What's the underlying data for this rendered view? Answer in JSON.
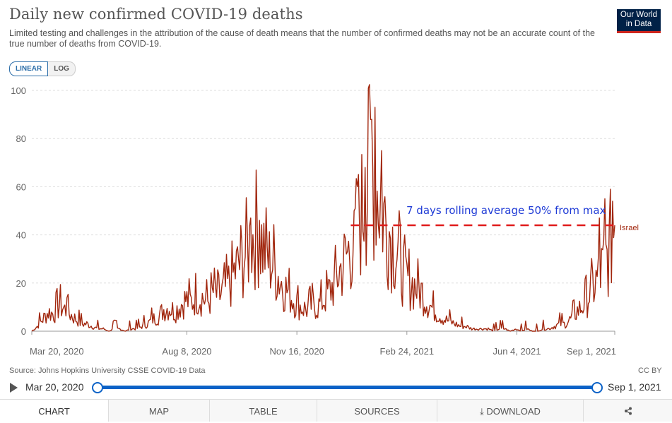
{
  "header": {
    "title": "Daily new confirmed COVID-19 deaths",
    "subtitle": "Limited testing and challenges in the attribution of the cause of death means that the number of confirmed deaths may not be an accurate count of the true number of deaths from COVID-19.",
    "logo_line1": "Our World",
    "logo_line2": "in Data"
  },
  "scale": {
    "linear_label": "LINEAR",
    "log_label": "LOG",
    "active": "linear"
  },
  "colors": {
    "series": "#a1260d",
    "annotation_line": "#e01b1b",
    "annotation_text": "#1f3bd6",
    "accent": "#0b62c7",
    "logo_bg": "#002147",
    "logo_bar": "#ce261e"
  },
  "chart_data": {
    "type": "line",
    "ylim": [
      0,
      100
    ],
    "y_ticks": [
      0,
      20,
      40,
      60,
      80,
      100
    ],
    "x_ticks": [
      "Mar 20, 2020",
      "Aug 8, 2020",
      "Nov 16, 2020",
      "Feb 24, 2021",
      "Jun 4, 2021",
      "Sep 1, 2021"
    ],
    "x_start": "Mar 20, 2020",
    "x_end": "Sep 1, 2021",
    "series": [
      {
        "name": "Israel",
        "points": [
          [
            "2020-03-20",
            0
          ],
          [
            "2020-03-25",
            2
          ],
          [
            "2020-03-30",
            5
          ],
          [
            "2020-04-04",
            8
          ],
          [
            "2020-04-09",
            7
          ],
          [
            "2020-04-14",
            11
          ],
          [
            "2020-04-19",
            9
          ],
          [
            "2020-04-24",
            7
          ],
          [
            "2020-04-29",
            5
          ],
          [
            "2020-05-04",
            3
          ],
          [
            "2020-05-09",
            3
          ],
          [
            "2020-05-14",
            2
          ],
          [
            "2020-05-19",
            1
          ],
          [
            "2020-05-24",
            1
          ],
          [
            "2020-05-29",
            0
          ],
          [
            "2020-06-03",
            1
          ],
          [
            "2020-06-08",
            1
          ],
          [
            "2020-06-13",
            0
          ],
          [
            "2020-06-18",
            1
          ],
          [
            "2020-06-23",
            1
          ],
          [
            "2020-06-28",
            2
          ],
          [
            "2020-07-03",
            3
          ],
          [
            "2020-07-08",
            5
          ],
          [
            "2020-07-13",
            6
          ],
          [
            "2020-07-18",
            9
          ],
          [
            "2020-07-23",
            10
          ],
          [
            "2020-07-28",
            8
          ],
          [
            "2020-08-02",
            11
          ],
          [
            "2020-08-07",
            13
          ],
          [
            "2020-08-12",
            12
          ],
          [
            "2020-08-17",
            15
          ],
          [
            "2020-08-22",
            14
          ],
          [
            "2020-08-27",
            12
          ],
          [
            "2020-09-01",
            16
          ],
          [
            "2020-09-06",
            14
          ],
          [
            "2020-09-11",
            17
          ],
          [
            "2020-09-16",
            20
          ],
          [
            "2020-09-21",
            25
          ],
          [
            "2020-09-26",
            28
          ],
          [
            "2020-10-01",
            33
          ],
          [
            "2020-10-06",
            38
          ],
          [
            "2020-10-11",
            42
          ],
          [
            "2020-10-16",
            36
          ],
          [
            "2020-10-21",
            30
          ],
          [
            "2020-10-26",
            28
          ],
          [
            "2020-10-31",
            22
          ],
          [
            "2020-11-05",
            18
          ],
          [
            "2020-11-10",
            15
          ],
          [
            "2020-11-15",
            12
          ],
          [
            "2020-11-20",
            10
          ],
          [
            "2020-11-25",
            9
          ],
          [
            "2020-11-30",
            11
          ],
          [
            "2020-12-05",
            10
          ],
          [
            "2020-12-10",
            13
          ],
          [
            "2020-12-15",
            16
          ],
          [
            "2020-12-20",
            20
          ],
          [
            "2020-12-25",
            25
          ],
          [
            "2020-12-30",
            30
          ],
          [
            "2021-01-04",
            35
          ],
          [
            "2021-01-09",
            40
          ],
          [
            "2021-01-14",
            48
          ],
          [
            "2021-01-19",
            62
          ],
          [
            "2021-01-24",
            65
          ],
          [
            "2021-01-29",
            58
          ],
          [
            "2021-02-03",
            48
          ],
          [
            "2021-02-08",
            42
          ],
          [
            "2021-02-13",
            35
          ],
          [
            "2021-02-18",
            28
          ],
          [
            "2021-02-23",
            22
          ],
          [
            "2021-02-28",
            20
          ],
          [
            "2021-03-05",
            18
          ],
          [
            "2021-03-10",
            16
          ],
          [
            "2021-03-15",
            12
          ],
          [
            "2021-03-20",
            9
          ],
          [
            "2021-03-25",
            7
          ],
          [
            "2021-03-30",
            5
          ],
          [
            "2021-04-04",
            4
          ],
          [
            "2021-04-09",
            3
          ],
          [
            "2021-04-14",
            2
          ],
          [
            "2021-04-19",
            2
          ],
          [
            "2021-04-24",
            1
          ],
          [
            "2021-04-29",
            1
          ],
          [
            "2021-05-04",
            1
          ],
          [
            "2021-05-09",
            1
          ],
          [
            "2021-05-14",
            0
          ],
          [
            "2021-05-19",
            1
          ],
          [
            "2021-05-24",
            1
          ],
          [
            "2021-05-29",
            0
          ],
          [
            "2021-06-03",
            1
          ],
          [
            "2021-06-08",
            0
          ],
          [
            "2021-06-13",
            1
          ],
          [
            "2021-06-18",
            0
          ],
          [
            "2021-06-23",
            0
          ],
          [
            "2021-06-28",
            1
          ],
          [
            "2021-07-03",
            1
          ],
          [
            "2021-07-08",
            2
          ],
          [
            "2021-07-13",
            3
          ],
          [
            "2021-07-18",
            3
          ],
          [
            "2021-07-23",
            5
          ],
          [
            "2021-07-28",
            8
          ],
          [
            "2021-08-02",
            10
          ],
          [
            "2021-08-07",
            14
          ],
          [
            "2021-08-12",
            18
          ],
          [
            "2021-08-17",
            22
          ],
          [
            "2021-08-22",
            27
          ],
          [
            "2021-08-27",
            33
          ],
          [
            "2021-09-01",
            44
          ]
        ],
        "spikes": [
          [
            "2020-04-21",
            14
          ],
          [
            "2020-09-24",
            30
          ],
          [
            "2020-10-05",
            47
          ],
          [
            "2020-10-13",
            46
          ],
          [
            "2021-01-07",
            50
          ],
          [
            "2021-01-10",
            60
          ],
          [
            "2021-01-17",
            68
          ],
          [
            "2021-01-20",
            101
          ],
          [
            "2021-01-23",
            88
          ],
          [
            "2021-01-26",
            93
          ],
          [
            "2021-02-01",
            75
          ],
          [
            "2021-02-17",
            50
          ],
          [
            "2021-08-18",
            47
          ],
          [
            "2021-08-23",
            55
          ],
          [
            "2021-08-30",
            54
          ],
          [
            "2021-09-01",
            44
          ]
        ]
      }
    ],
    "annotation": {
      "text": "7 days rolling average 50% from max",
      "y": 44,
      "x_from": "2021-01-04",
      "x_to": "2021-09-01"
    }
  },
  "source": "Source: Johns Hopkins University CSSE COVID-19 Data",
  "license": "CC BY",
  "timeline": {
    "start_label": "Mar 20, 2020",
    "end_label": "Sep 1, 2021"
  },
  "tabs": [
    {
      "label": "CHART"
    },
    {
      "label": "MAP"
    },
    {
      "label": "TABLE"
    },
    {
      "label": "SOURCES"
    },
    {
      "label": "⤓ DOWNLOAD"
    },
    {
      "label": "share-icon"
    }
  ]
}
